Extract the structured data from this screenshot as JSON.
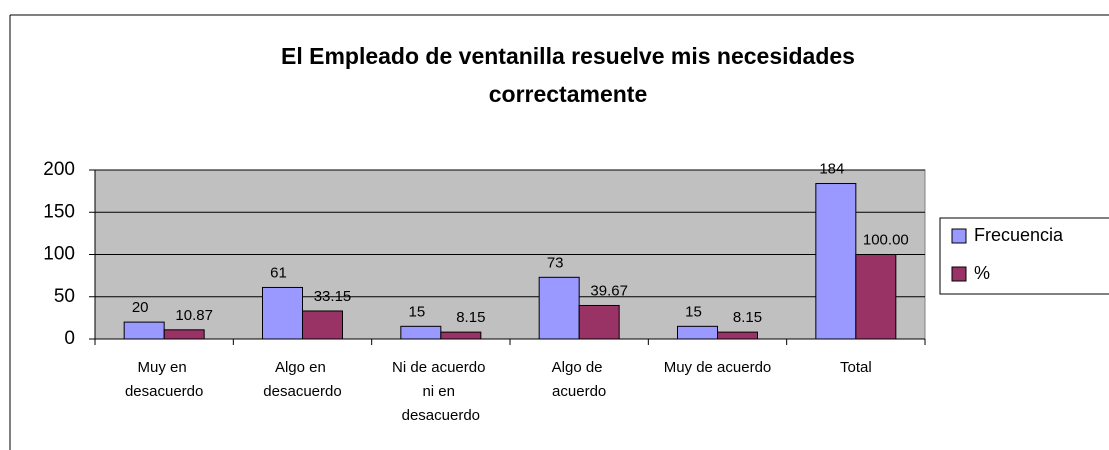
{
  "chart_data": {
    "type": "bar",
    "title": [
      "El Empleado de ventanilla resuelve mis necesidades",
      "correctamente"
    ],
    "categories": [
      "Muy en desacuerdo",
      "Algo en desacuerdo",
      "Ni de acuerdo ni en desacuerdo",
      "Algo de acuerdo",
      "Muy de acuerdo",
      "Total"
    ],
    "series": [
      {
        "name": "Frecuencia",
        "color": "#9999ff",
        "values": [
          20,
          61,
          15,
          73,
          15,
          184
        ]
      },
      {
        "name": "%",
        "color": "#993366",
        "values": [
          10.87,
          33.15,
          8.15,
          39.67,
          8.15,
          100
        ],
        "value_labels": [
          "10.87",
          "33.15",
          "8.15",
          "39.67",
          "8.15",
          "100.00"
        ]
      }
    ],
    "ylim": [
      0,
      200
    ],
    "yticks": [
      0,
      50,
      100,
      150,
      200
    ],
    "grid": true,
    "legend": "right"
  }
}
